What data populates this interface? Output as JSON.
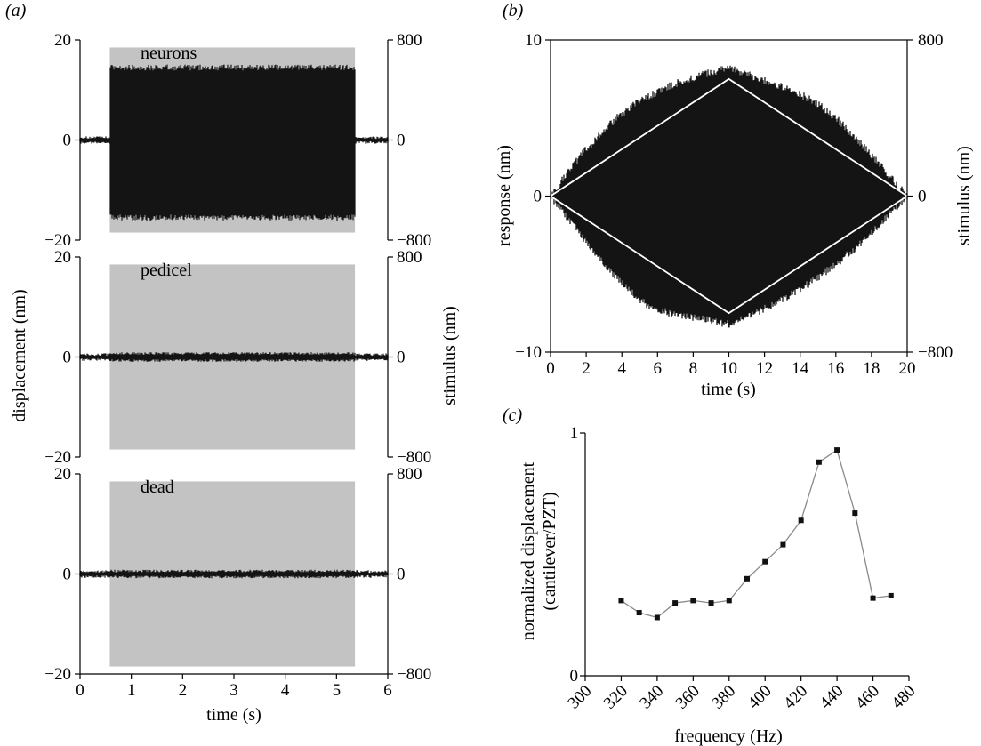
{
  "panels": {
    "a": {
      "letter": "(a)"
    },
    "b": {
      "letter": "(b)"
    },
    "c": {
      "letter": "(c)"
    }
  },
  "colors": {
    "trace": "#141414",
    "stimulus_shading": "#c3c3c3",
    "envelope_line": "#ffffff",
    "marker_line": "#8a8a8a",
    "marker": "#111111"
  },
  "chart_data": [
    {
      "id": "a",
      "type": "line",
      "xlabel": "time (s)",
      "ylabel": "displacement (nm)",
      "ylabel_right": "stimulus (nm)",
      "x_ticks": [
        "0",
        "1",
        "2",
        "3",
        "4",
        "5",
        "6"
      ],
      "xlim": [
        0,
        6
      ],
      "stimulus_on": [
        0.58,
        5.36
      ],
      "subplots": [
        {
          "name": "neurons",
          "ylim": [
            -20,
            20
          ],
          "y_ticks": [
            "20",
            "0",
            "−20"
          ],
          "right_ylim": [
            -800,
            800
          ],
          "right_ticks": [
            "800",
            "0",
            "−800"
          ],
          "stimulus_amplitude": 740,
          "response_baseline": 0.5,
          "response_amplitude": 14.5,
          "response_neg_amplitude": 15.5
        },
        {
          "name": "pedicel",
          "ylim": [
            -20,
            20
          ],
          "y_ticks": [
            "20",
            "0",
            "−20"
          ],
          "right_ylim": [
            -800,
            800
          ],
          "right_ticks": [
            "800",
            "0",
            "−800"
          ],
          "stimulus_amplitude": 740,
          "response_baseline": 0.5,
          "response_amplitude": 0.7,
          "response_neg_amplitude": 0.7
        },
        {
          "name": "dead",
          "ylim": [
            -20,
            20
          ],
          "y_ticks": [
            "20",
            "0",
            "−20"
          ],
          "right_ylim": [
            -800,
            800
          ],
          "right_ticks": [
            "800",
            "0",
            "−800"
          ],
          "stimulus_amplitude": 740,
          "response_baseline": 0.5,
          "response_amplitude": 0.6,
          "response_neg_amplitude": 0.6
        }
      ]
    },
    {
      "id": "b",
      "type": "area",
      "xlabel": "time (s)",
      "ylabel": "response (nm)",
      "ylabel_right": "stimulus (nm)",
      "xlim": [
        0,
        20
      ],
      "ylim": [
        -10,
        10
      ],
      "right_ylim": [
        -800,
        800
      ],
      "x_ticks": [
        "0",
        "2",
        "4",
        "6",
        "8",
        "10",
        "12",
        "14",
        "16",
        "18",
        "20"
      ],
      "y_ticks": [
        "10",
        "0",
        "−10"
      ],
      "right_ticks": [
        "800",
        "0",
        "−800"
      ],
      "response_envelope": {
        "x": [
          0,
          1,
          2,
          3,
          4,
          5,
          6,
          7,
          8,
          9,
          10,
          11,
          12,
          13,
          14,
          15,
          16,
          17,
          18,
          19,
          20
        ],
        "upper": [
          0,
          1.6,
          3.0,
          4.2,
          5.3,
          6.1,
          6.7,
          7.2,
          7.6,
          7.95,
          8.2,
          7.8,
          7.4,
          7.0,
          6.5,
          5.9,
          5.0,
          3.9,
          2.6,
          1.3,
          0
        ],
        "lower": [
          0,
          -1.5,
          -2.9,
          -4.4,
          -5.6,
          -6.7,
          -7.3,
          -7.6,
          -7.8,
          -8.0,
          -8.2,
          -7.8,
          -7.2,
          -6.6,
          -6.0,
          -5.2,
          -4.4,
          -3.4,
          -2.4,
          -1.2,
          0
        ]
      },
      "stimulus_envelope": {
        "x": [
          0,
          10,
          20
        ],
        "upper": [
          0,
          600,
          0
        ],
        "lower": [
          0,
          -600,
          0
        ]
      }
    },
    {
      "id": "c",
      "type": "line",
      "xlabel": "frequency (Hz)",
      "ylabel_line1": "normalized displacement",
      "ylabel_line2": "(cantilever/PZT)",
      "xlim": [
        300,
        480
      ],
      "ylim": [
        0,
        1
      ],
      "x_ticks": [
        "300",
        "320",
        "340",
        "360",
        "380",
        "400",
        "420",
        "440",
        "460",
        "480"
      ],
      "y_ticks": [
        "1",
        "0"
      ],
      "x": [
        320,
        330,
        340,
        350,
        360,
        370,
        380,
        390,
        400,
        410,
        420,
        430,
        440,
        450,
        460,
        470
      ],
      "y": [
        0.31,
        0.26,
        0.24,
        0.3,
        0.31,
        0.3,
        0.31,
        0.4,
        0.47,
        0.54,
        0.64,
        0.88,
        0.93,
        0.67,
        0.32,
        0.33
      ]
    }
  ]
}
